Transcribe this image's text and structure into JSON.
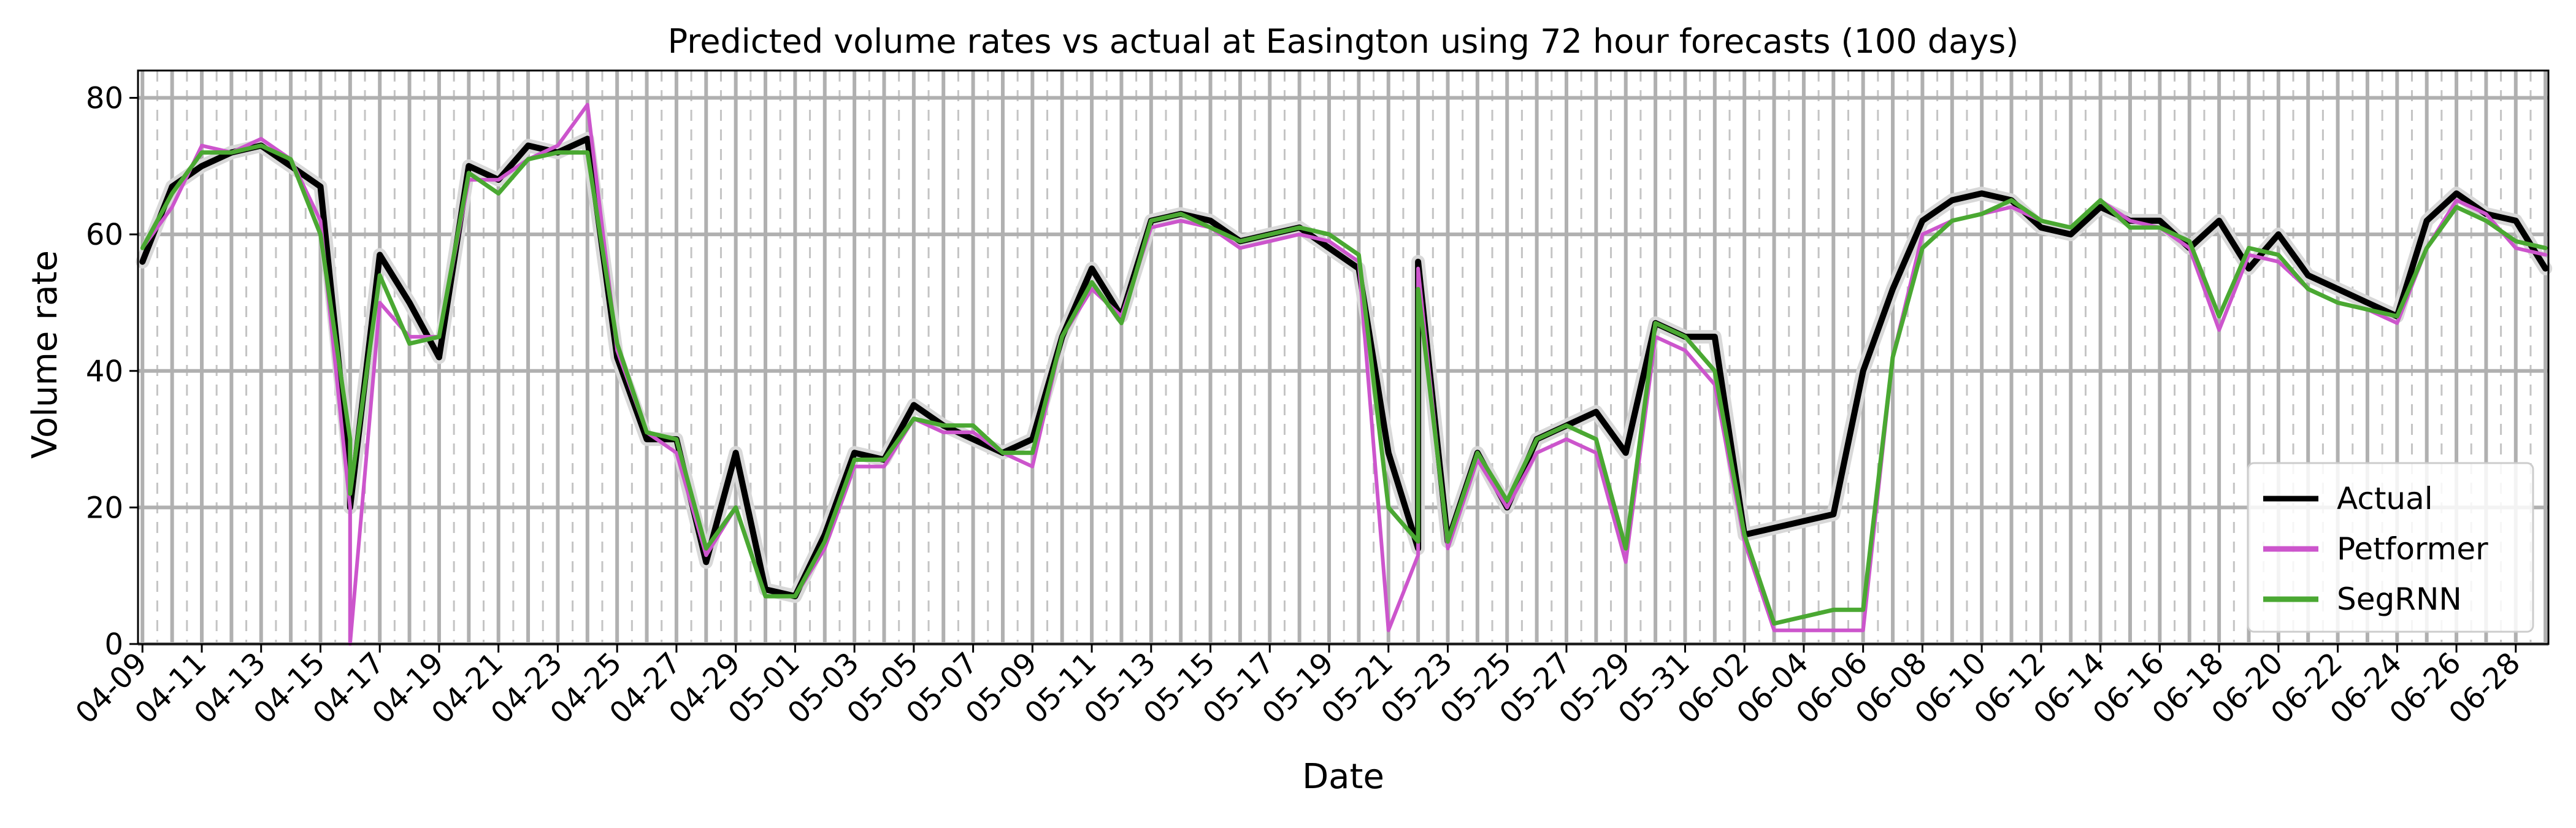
{
  "chart_data": {
    "type": "line",
    "title": "Predicted volume rates vs actual at Easington using 72 hour forecasts (100 days)",
    "xlabel": "Date",
    "ylabel": "Volume rate",
    "ylim": [
      0,
      84
    ],
    "xlim": [
      "04-09",
      "06-29"
    ],
    "x_ticks": [
      "04-09",
      "04-11",
      "04-13",
      "04-15",
      "04-17",
      "04-19",
      "04-21",
      "04-23",
      "04-25",
      "04-27",
      "04-29",
      "05-01",
      "05-03",
      "05-05",
      "05-07",
      "05-09",
      "05-11",
      "05-13",
      "05-15",
      "05-17",
      "05-19",
      "05-21",
      "05-23",
      "05-25",
      "05-27",
      "05-29",
      "05-31",
      "06-02",
      "06-04",
      "06-06",
      "06-08",
      "06-10",
      "06-12",
      "06-14",
      "06-16",
      "06-18",
      "06-20",
      "06-22",
      "06-24",
      "06-26",
      "06-28"
    ],
    "y_ticks": [
      0,
      20,
      40,
      60,
      80
    ],
    "grid": true,
    "legend_position": "lower-right",
    "x": [
      "04-09",
      "04-10",
      "04-11",
      "04-12",
      "04-13",
      "04-14",
      "04-15",
      "04-16",
      "04-16",
      "04-17",
      "04-18",
      "04-19",
      "04-20",
      "04-21",
      "04-22",
      "04-23",
      "04-24",
      "04-25",
      "04-26",
      "04-27",
      "04-28",
      "04-29",
      "04-30",
      "05-01",
      "05-02",
      "05-03",
      "05-04",
      "05-05",
      "05-06",
      "05-07",
      "05-08",
      "05-09",
      "05-10",
      "05-11",
      "05-12",
      "05-13",
      "05-14",
      "05-15",
      "05-16",
      "05-17",
      "05-18",
      "05-19",
      "05-20",
      "05-21",
      "05-22",
      "05-22",
      "05-23",
      "05-24",
      "05-25",
      "05-26",
      "05-27",
      "05-28",
      "05-29",
      "05-30",
      "05-31",
      "06-01",
      "06-02",
      "06-03",
      "06-04",
      "06-05",
      "06-06",
      "06-07",
      "06-08",
      "06-09",
      "06-10",
      "06-11",
      "06-12",
      "06-13",
      "06-14",
      "06-15",
      "06-16",
      "06-17",
      "06-18",
      "06-19",
      "06-20",
      "06-21",
      "06-22",
      "06-23",
      "06-24",
      "06-25",
      "06-26",
      "06-27",
      "06-28",
      "06-29"
    ],
    "series": [
      {
        "name": "Actual",
        "color": "#000000",
        "values": [
          56,
          67,
          70,
          72,
          73,
          70,
          67,
          25,
          20,
          57,
          50,
          42,
          70,
          68,
          73,
          72,
          74,
          42,
          30,
          30,
          12,
          28,
          8,
          7,
          16,
          28,
          27,
          35,
          32,
          30,
          28,
          30,
          45,
          55,
          48,
          62,
          63,
          62,
          59,
          60,
          61,
          58,
          55,
          28,
          14,
          56,
          15,
          28,
          20,
          30,
          32,
          34,
          28,
          47,
          45,
          45,
          16,
          17,
          18,
          19,
          40,
          52,
          62,
          65,
          66,
          65,
          61,
          60,
          64,
          62,
          62,
          58,
          62,
          55,
          60,
          54,
          52,
          50,
          48,
          62,
          66,
          63,
          62,
          55
        ]
      },
      {
        "name": "Petformer",
        "color": "#cc55cc",
        "values": [
          58,
          64,
          73,
          72,
          74,
          71,
          62,
          20,
          0,
          50,
          45,
          45,
          68,
          68,
          71,
          73,
          79,
          43,
          31,
          28,
          13,
          20,
          7,
          7,
          14,
          26,
          26,
          33,
          31,
          31,
          28,
          26,
          45,
          52,
          48,
          61,
          62,
          61,
          58,
          59,
          60,
          59,
          56,
          2,
          13,
          55,
          14,
          27,
          20,
          28,
          30,
          28,
          12,
          45,
          43,
          38,
          15,
          2,
          2,
          2,
          2,
          42,
          60,
          62,
          63,
          64,
          62,
          61,
          65,
          62,
          61,
          58,
          46,
          57,
          56,
          52,
          50,
          49,
          47,
          58,
          65,
          63,
          58,
          57
        ]
      },
      {
        "name": "SegRNN",
        "color": "#4aa832",
        "values": [
          58,
          66,
          72,
          72,
          73,
          71,
          60,
          30,
          22,
          54,
          44,
          45,
          69,
          66,
          71,
          72,
          72,
          44,
          31,
          30,
          14,
          20,
          7,
          7,
          15,
          27,
          27,
          33,
          32,
          32,
          28,
          28,
          45,
          53,
          47,
          62,
          63,
          61,
          59,
          60,
          61,
          60,
          57,
          20,
          15,
          52,
          15,
          28,
          21,
          30,
          32,
          30,
          14,
          47,
          45,
          40,
          16,
          3,
          4,
          5,
          5,
          42,
          58,
          62,
          63,
          65,
          62,
          61,
          65,
          61,
          61,
          59,
          48,
          58,
          57,
          52,
          50,
          49,
          48,
          58,
          64,
          62,
          59,
          58
        ]
      }
    ]
  }
}
